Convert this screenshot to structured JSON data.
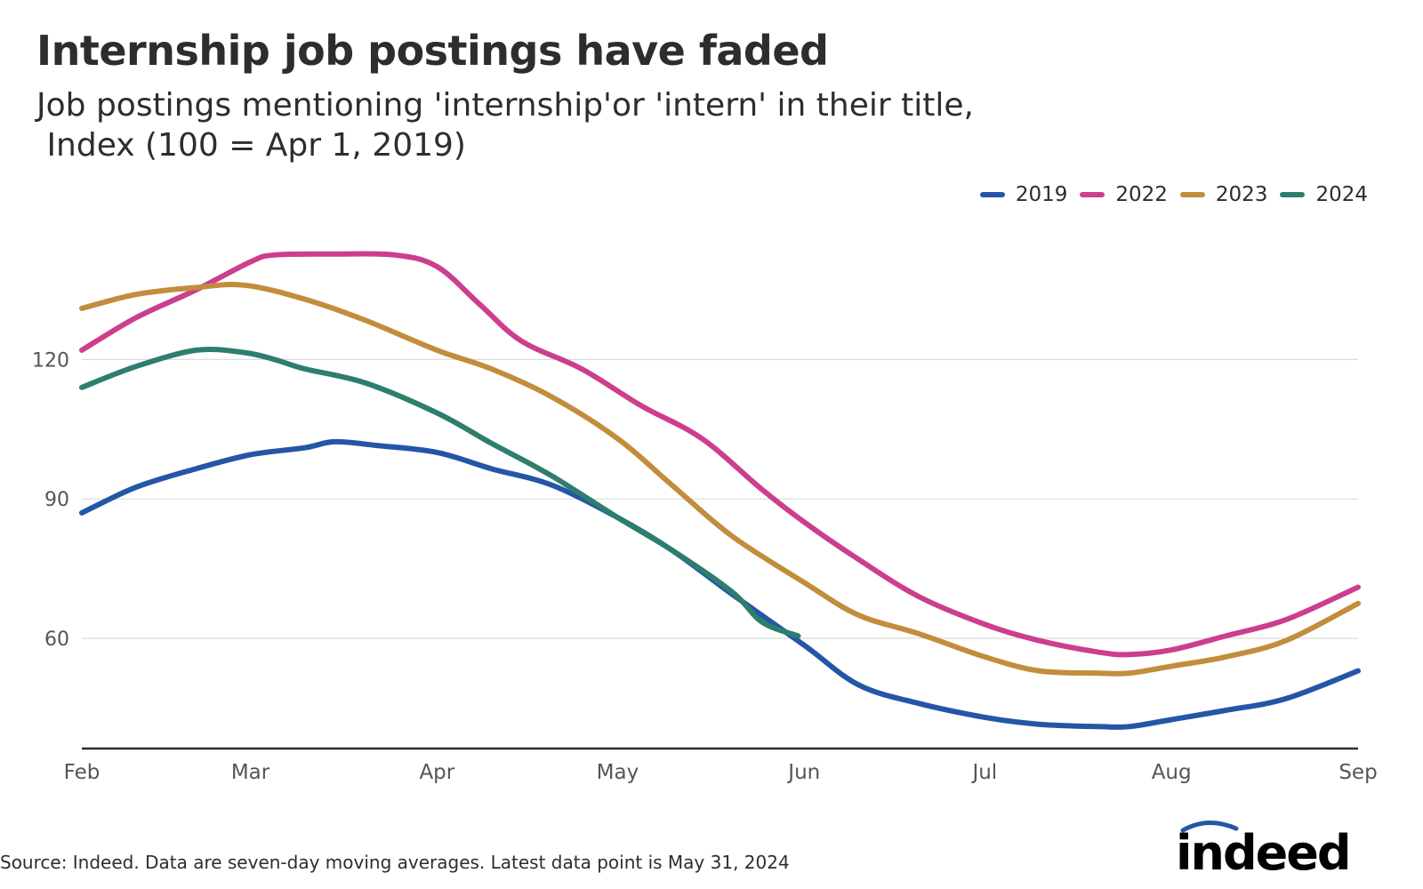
{
  "chart_data": {
    "type": "line",
    "title": "Internship job postings have faded",
    "subtitle_line1": "Job postings mentioning 'internship'or 'intern' in their title,",
    "subtitle_line2": " Index (100 = Apr 1, 2019)",
    "x_ticks": [
      "Feb",
      "Mar",
      "Apr",
      "May",
      "Jun",
      "Jul",
      "Aug",
      "Sep"
    ],
    "y_ticks": [
      60,
      90,
      120
    ],
    "ylim": [
      35,
      152
    ],
    "grid": "horizontal",
    "legend_position": "top-right",
    "series": [
      {
        "name": "2019",
        "color": "#2456a6",
        "points": [
          [
            "2019-02-01",
            87.0
          ],
          [
            "2019-02-10",
            92.5
          ],
          [
            "2019-02-20",
            96.5
          ],
          [
            "2019-03-01",
            99.5
          ],
          [
            "2019-03-10",
            101.0
          ],
          [
            "2019-03-15",
            102.3
          ],
          [
            "2019-03-22",
            101.5
          ],
          [
            "2019-04-01",
            100.0
          ],
          [
            "2019-04-10",
            96.5
          ],
          [
            "2019-04-20",
            93.0
          ],
          [
            "2019-05-01",
            86.0
          ],
          [
            "2019-05-10",
            79.0
          ],
          [
            "2019-05-20",
            69.5
          ],
          [
            "2019-06-01",
            58.5
          ],
          [
            "2019-06-10",
            50.0
          ],
          [
            "2019-06-20",
            46.0
          ],
          [
            "2019-07-01",
            43.0
          ],
          [
            "2019-07-10",
            41.5
          ],
          [
            "2019-07-20",
            41.0
          ],
          [
            "2019-07-25",
            41.0
          ],
          [
            "2019-08-01",
            42.5
          ],
          [
            "2019-08-10",
            44.5
          ],
          [
            "2019-08-20",
            47.0
          ],
          [
            "2019-09-01",
            53.0
          ]
        ]
      },
      {
        "name": "2022",
        "color": "#cc3e8e",
        "points": [
          [
            "2022-02-01",
            122.0
          ],
          [
            "2022-02-10",
            129.0
          ],
          [
            "2022-02-20",
            135.0
          ],
          [
            "2022-03-01",
            141.0
          ],
          [
            "2022-03-05",
            142.5
          ],
          [
            "2022-03-15",
            142.7
          ],
          [
            "2022-03-25",
            142.5
          ],
          [
            "2022-04-01",
            140.0
          ],
          [
            "2022-04-08",
            132.0
          ],
          [
            "2022-04-15",
            124.0
          ],
          [
            "2022-04-25",
            118.0
          ],
          [
            "2022-05-05",
            110.0
          ],
          [
            "2022-05-15",
            103.0
          ],
          [
            "2022-05-25",
            92.0
          ],
          [
            "2022-06-01",
            85.0
          ],
          [
            "2022-06-10",
            77.0
          ],
          [
            "2022-06-20",
            69.0
          ],
          [
            "2022-07-01",
            63.0
          ],
          [
            "2022-07-10",
            59.5
          ],
          [
            "2022-07-20",
            57.0
          ],
          [
            "2022-07-25",
            56.5
          ],
          [
            "2022-08-01",
            57.5
          ],
          [
            "2022-08-10",
            60.5
          ],
          [
            "2022-08-20",
            64.0
          ],
          [
            "2022-09-01",
            71.0
          ]
        ]
      },
      {
        "name": "2023",
        "color": "#c28d3c",
        "points": [
          [
            "2023-02-01",
            131.0
          ],
          [
            "2023-02-10",
            134.0
          ],
          [
            "2023-02-20",
            135.5
          ],
          [
            "2023-02-28",
            136.0
          ],
          [
            "2023-03-10",
            133.0
          ],
          [
            "2023-03-20",
            128.5
          ],
          [
            "2023-04-01",
            122.0
          ],
          [
            "2023-04-10",
            118.0
          ],
          [
            "2023-04-20",
            112.0
          ],
          [
            "2023-05-01",
            103.0
          ],
          [
            "2023-05-10",
            93.0
          ],
          [
            "2023-05-20",
            82.0
          ],
          [
            "2023-06-01",
            72.0
          ],
          [
            "2023-06-10",
            65.0
          ],
          [
            "2023-06-20",
            61.0
          ],
          [
            "2023-07-01",
            56.0
          ],
          [
            "2023-07-10",
            53.0
          ],
          [
            "2023-07-20",
            52.5
          ],
          [
            "2023-07-25",
            52.5
          ],
          [
            "2023-08-01",
            54.0
          ],
          [
            "2023-08-10",
            56.0
          ],
          [
            "2023-08-20",
            59.5
          ],
          [
            "2023-09-01",
            67.5
          ]
        ]
      },
      {
        "name": "2024",
        "color": "#2e7e6e",
        "points": [
          [
            "2024-02-01",
            114.0
          ],
          [
            "2024-02-10",
            118.5
          ],
          [
            "2024-02-20",
            122.0
          ],
          [
            "2024-02-28",
            121.5
          ],
          [
            "2024-03-05",
            120.0
          ],
          [
            "2024-03-10",
            118.0
          ],
          [
            "2024-03-20",
            115.0
          ],
          [
            "2024-04-01",
            108.5
          ],
          [
            "2024-04-10",
            102.0
          ],
          [
            "2024-04-20",
            95.0
          ],
          [
            "2024-05-01",
            86.0
          ],
          [
            "2024-05-10",
            79.0
          ],
          [
            "2024-05-20",
            70.0
          ],
          [
            "2024-05-25",
            63.5
          ],
          [
            "2024-05-31",
            60.5
          ]
        ]
      }
    ]
  },
  "source": "Source: Indeed. Data are seven-day moving averages. Latest data point is May 31, 2024",
  "logo": {
    "text": "indeed",
    "color": "#2557a7"
  }
}
